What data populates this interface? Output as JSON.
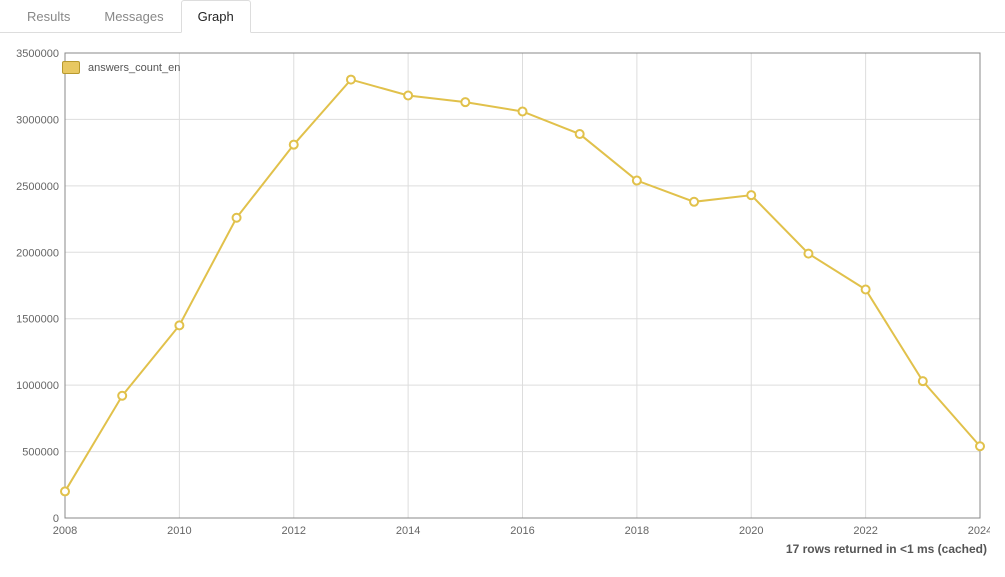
{
  "tabs": {
    "t0": "Results",
    "t1": "Messages",
    "t2": "Graph"
  },
  "status_footer": "17 rows returned in <1 ms (cached)",
  "chart": {
    "type": "line",
    "series_name": "answers_count_en",
    "x": [
      2008,
      2009,
      2010,
      2011,
      2012,
      2013,
      2014,
      2015,
      2016,
      2017,
      2018,
      2019,
      2020,
      2021,
      2022,
      2023,
      2024
    ],
    "y": [
      200000,
      920000,
      1450000,
      2260000,
      2810000,
      3300000,
      3180000,
      3130000,
      3060000,
      2890000,
      2540000,
      2380000,
      2430000,
      1990000,
      1720000,
      1030000,
      540000
    ],
    "xlim": [
      2008,
      2024
    ],
    "ylim": [
      0,
      3500000
    ],
    "xtick_step": 2,
    "ytick_step": 500000,
    "line_color": "#e1c14b",
    "line_width": 2,
    "marker_radius": 4,
    "marker_stroke": "#e1c14b",
    "marker_fill": "#ffffff",
    "legend_swatch_fill": "#e8c862",
    "legend_swatch_stroke": "#b89a2e",
    "background_color": "#ffffff",
    "grid_color": "#dddddd",
    "axis_color": "#888888",
    "plot_border_color": "#888888",
    "axis_font_size": 11,
    "legend_font_size": 11
  }
}
